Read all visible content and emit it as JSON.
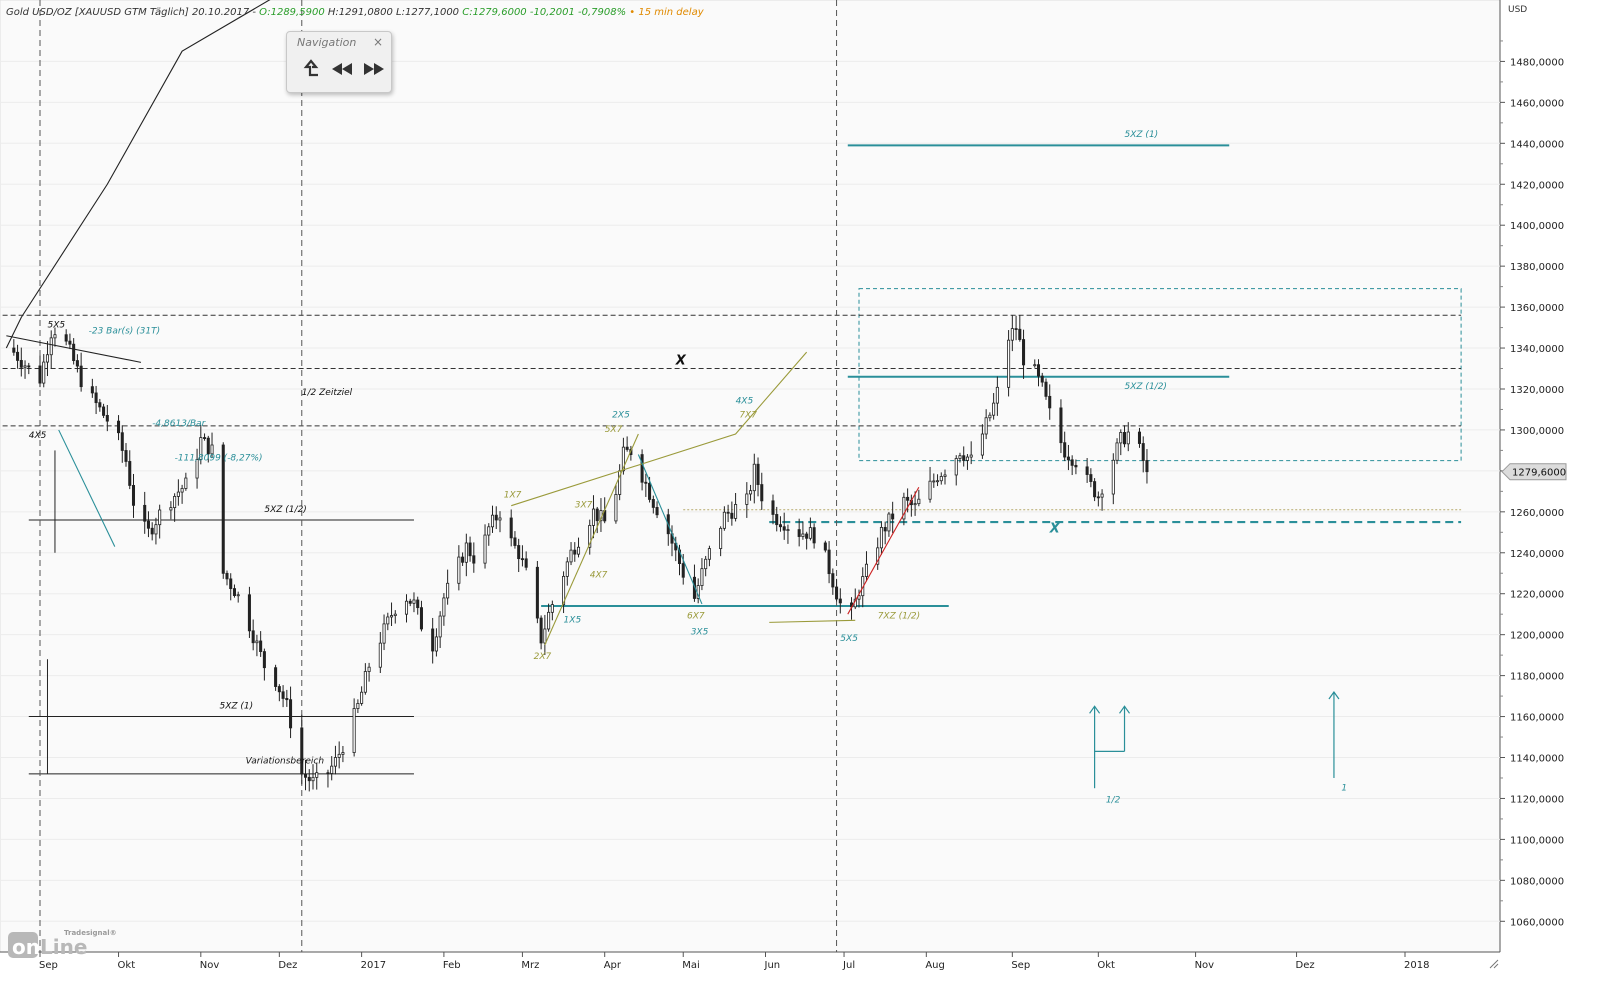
{
  "header": {
    "symbol": "Gold USD/OZ [XAUUSD GTM Täglich] 20.10.2017 -",
    "open": "O:1289,5900",
    "hl": "H:1291,0800 L:1277,1000",
    "close": "C:1279,6000 -10,2001 -0,7908%",
    "delay": "• 15 min delay"
  },
  "navigation": {
    "title": "Navigation",
    "close_glyph": "×",
    "buttons": [
      "go-to-last",
      "scroll-back",
      "scroll-forward"
    ]
  },
  "logo": {
    "brand": "Tradesignal®",
    "word": "onLine"
  },
  "colors": {
    "teal": "#2a8f99",
    "olive": "#9a9a3a",
    "black": "#222222",
    "red": "#cc2222",
    "price_tag": "#dcdcdc"
  },
  "chart_data": {
    "type": "candlestick",
    "currency_label": "USD",
    "ylim": [
      1045,
      1510
    ],
    "y_ticks": [
      1060,
      1080,
      1100,
      1120,
      1140,
      1160,
      1180,
      1200,
      1220,
      1240,
      1260,
      1280,
      1300,
      1320,
      1340,
      1360,
      1380,
      1400,
      1420,
      1440,
      1460,
      1480
    ],
    "y_tick_labels": [
      "1060,0000",
      "1080,0000",
      "1100,0000",
      "1120,0000",
      "1140,0000",
      "1160,0000",
      "1180,0000",
      "1200,0000",
      "1220,0000",
      "1240,0000",
      "1260,0000",
      "1280,0000",
      "1300,0000",
      "1320,0000",
      "1340,0000",
      "1360,0000",
      "1380,0000",
      "1400,0000",
      "1420,0000",
      "1440,0000",
      "1460,0000",
      "1480,0000"
    ],
    "last_price_label": "1279,6000",
    "last_price": 1279.6,
    "x_months": [
      "Sep",
      "Okt",
      "Nov",
      "Dez",
      "2017",
      "Feb",
      "Mrz",
      "Apr",
      "Mai",
      "Jun",
      "Jul",
      "Aug",
      "Sep",
      "Okt",
      "Nov",
      "Dez",
      "2018"
    ],
    "x_month_index": [
      0,
      21,
      43,
      64,
      86,
      108,
      129,
      151,
      172,
      194,
      215,
      237,
      260,
      283,
      309,
      336,
      365
    ],
    "x_range": [
      -10,
      380
    ],
    "price_path": [
      [
        -8,
        1340
      ],
      [
        -3,
        1330
      ],
      [
        0,
        1325
      ],
      [
        3,
        1348
      ],
      [
        5,
        1350
      ],
      [
        8,
        1338
      ],
      [
        12,
        1320
      ],
      [
        16,
        1310
      ],
      [
        20,
        1300
      ],
      [
        23,
        1285
      ],
      [
        26,
        1255
      ],
      [
        29,
        1250
      ],
      [
        33,
        1262
      ],
      [
        37,
        1270
      ],
      [
        40,
        1275
      ],
      [
        43,
        1295
      ],
      [
        46,
        1290
      ],
      [
        47,
        1265
      ],
      [
        49,
        1230
      ],
      [
        52,
        1222
      ],
      [
        54,
        1215
      ],
      [
        57,
        1200
      ],
      [
        60,
        1185
      ],
      [
        63,
        1178
      ],
      [
        66,
        1165
      ],
      [
        68,
        1150
      ],
      [
        70,
        1132
      ],
      [
        73,
        1128
      ],
      [
        76,
        1130
      ],
      [
        79,
        1138
      ],
      [
        82,
        1150
      ],
      [
        85,
        1165
      ],
      [
        88,
        1185
      ],
      [
        91,
        1198
      ],
      [
        94,
        1210
      ],
      [
        97,
        1220
      ],
      [
        100,
        1215
      ],
      [
        102,
        1205
      ],
      [
        105,
        1195
      ],
      [
        108,
        1218
      ],
      [
        111,
        1230
      ],
      [
        114,
        1243
      ],
      [
        117,
        1235
      ],
      [
        120,
        1252
      ],
      [
        123,
        1260
      ],
      [
        125,
        1248
      ],
      [
        128,
        1240
      ],
      [
        130,
        1230
      ],
      [
        132,
        1212
      ],
      [
        134,
        1198
      ],
      [
        136,
        1210
      ],
      [
        139,
        1225
      ],
      [
        142,
        1240
      ],
      [
        145,
        1250
      ],
      [
        148,
        1260
      ],
      [
        151,
        1255
      ],
      [
        154,
        1270
      ],
      [
        156,
        1288
      ],
      [
        158,
        1290
      ],
      [
        161,
        1278
      ],
      [
        164,
        1265
      ],
      [
        167,
        1255
      ],
      [
        169,
        1245
      ],
      [
        172,
        1230
      ],
      [
        175,
        1218
      ],
      [
        177,
        1230
      ],
      [
        180,
        1245
      ],
      [
        183,
        1258
      ],
      [
        186,
        1262
      ],
      [
        189,
        1265
      ],
      [
        191,
        1280
      ],
      [
        194,
        1262
      ],
      [
        196,
        1258
      ],
      [
        199,
        1255
      ],
      [
        202,
        1250
      ],
      [
        205,
        1250
      ],
      [
        208,
        1248
      ],
      [
        211,
        1232
      ],
      [
        214,
        1215
      ],
      [
        217,
        1210
      ],
      [
        219,
        1222
      ],
      [
        222,
        1235
      ],
      [
        225,
        1250
      ],
      [
        228,
        1258
      ],
      [
        231,
        1265
      ],
      [
        234,
        1262
      ],
      [
        237,
        1270
      ],
      [
        240,
        1278
      ],
      [
        243,
        1282
      ],
      [
        246,
        1290
      ],
      [
        249,
        1285
      ],
      [
        252,
        1298
      ],
      [
        255,
        1312
      ],
      [
        257,
        1325
      ],
      [
        259,
        1345
      ],
      [
        261,
        1350
      ],
      [
        263,
        1335
      ],
      [
        266,
        1328
      ],
      [
        268,
        1320
      ],
      [
        271,
        1302
      ],
      [
        274,
        1290
      ],
      [
        277,
        1285
      ],
      [
        280,
        1275
      ],
      [
        283,
        1268
      ],
      [
        286,
        1282
      ],
      [
        289,
        1295
      ],
      [
        292,
        1300
      ],
      [
        295,
        1285
      ],
      [
        296,
        1279.6
      ]
    ],
    "horizontal_lines": [
      {
        "value": 1356,
        "style": "black-dashed",
        "x0": -10,
        "x1": 380
      },
      {
        "value": 1330,
        "style": "black-dashed",
        "x0": -10,
        "x1": 380
      },
      {
        "value": 1302,
        "style": "black-dashed",
        "x0": -10,
        "x1": 380
      },
      {
        "value": 1256,
        "style": "black-solid",
        "x0": -3,
        "x1": 100
      },
      {
        "value": 1160,
        "style": "black-solid",
        "x0": -3,
        "x1": 100
      },
      {
        "value": 1132,
        "style": "black-solid",
        "x0": -3,
        "x1": 100
      },
      {
        "value": 1439,
        "style": "teal-solid",
        "x0": 216,
        "x1": 318
      },
      {
        "value": 1326,
        "style": "teal-solid",
        "x0": 216,
        "x1": 318
      },
      {
        "value": 1214,
        "style": "teal-solid",
        "x0": 134,
        "x1": 243
      },
      {
        "value": 1255,
        "style": "teal-dashed-thick",
        "x0": 195,
        "x1": 380
      },
      {
        "value": 1261,
        "style": "olive-dotted",
        "x0": 172,
        "x1": 380
      }
    ],
    "dashed_box": {
      "x0": 219,
      "x1": 380,
      "y0": 1285,
      "y1": 1369
    },
    "vertical_dashed": [
      0,
      70,
      213
    ],
    "trend_lines": [
      {
        "style": "black",
        "points": [
          [
            -9,
            1340
          ],
          [
            -5,
            1355
          ],
          [
            18,
            1420
          ],
          [
            38,
            1485
          ],
          [
            80,
            1530
          ]
        ]
      },
      {
        "style": "black",
        "points": [
          [
            -9,
            1346
          ],
          [
            27,
            1333
          ]
        ]
      },
      {
        "style": "olive",
        "points": [
          [
            126,
            1263
          ],
          [
            186,
            1298
          ],
          [
            205,
            1338
          ]
        ]
      },
      {
        "style": "olive",
        "points": [
          [
            135,
            1195
          ],
          [
            160,
            1298
          ]
        ]
      },
      {
        "style": "olive",
        "points": [
          [
            195,
            1206
          ],
          [
            218,
            1207
          ]
        ]
      },
      {
        "style": "red",
        "points": [
          [
            216,
            1210
          ],
          [
            235,
            1272
          ]
        ]
      },
      {
        "style": "teal",
        "points": [
          [
            5,
            1300
          ],
          [
            20,
            1243
          ]
        ]
      },
      {
        "style": "teal",
        "points": [
          [
            160,
            1288
          ],
          [
            177,
            1215
          ]
        ]
      }
    ],
    "labels": [
      {
        "text": "5X5",
        "x": 2,
        "y": 1350,
        "color": "black"
      },
      {
        "text": "-23 Bar(s) (31T)",
        "x": 13,
        "y": 1347,
        "color": "teal"
      },
      {
        "text": "4X5",
        "x": -3,
        "y": 1296,
        "color": "black"
      },
      {
        "text": "-4,8613/Bar",
        "x": 30,
        "y": 1302,
        "color": "teal"
      },
      {
        "text": "-111,8099 (-8,27%)",
        "x": 36,
        "y": 1285,
        "color": "teal"
      },
      {
        "text": "1/2 Zeitziel",
        "x": 70,
        "y": 1317,
        "color": "black"
      },
      {
        "text": "5XZ (1/2)",
        "x": 60,
        "y": 1260,
        "color": "black"
      },
      {
        "text": "5XZ (1)",
        "x": 48,
        "y": 1164,
        "color": "black"
      },
      {
        "text": "Variationsbereich",
        "x": 55,
        "y": 1137,
        "color": "black"
      },
      {
        "text": "X",
        "x": 170,
        "y": 1332,
        "color": "black",
        "bold": true
      },
      {
        "text": "1X7",
        "x": 124,
        "y": 1267,
        "color": "olive"
      },
      {
        "text": "3X7",
        "x": 143,
        "y": 1262,
        "color": "olive"
      },
      {
        "text": "2X5",
        "x": 153,
        "y": 1306,
        "color": "teal"
      },
      {
        "text": "5X7",
        "x": 151,
        "y": 1299,
        "color": "olive"
      },
      {
        "text": "4X7",
        "x": 147,
        "y": 1228,
        "color": "olive"
      },
      {
        "text": "1X5",
        "x": 140,
        "y": 1206,
        "color": "teal"
      },
      {
        "text": "2X7",
        "x": 132,
        "y": 1188,
        "color": "olive"
      },
      {
        "text": "6X7",
        "x": 173,
        "y": 1208,
        "color": "olive"
      },
      {
        "text": "3X5",
        "x": 174,
        "y": 1200,
        "color": "teal"
      },
      {
        "text": "4X5",
        "x": 186,
        "y": 1313,
        "color": "teal"
      },
      {
        "text": "7X7",
        "x": 187,
        "y": 1306,
        "color": "olive"
      },
      {
        "text": "5X5",
        "x": 214,
        "y": 1197,
        "color": "teal"
      },
      {
        "text": "7XZ (1/2)",
        "x": 224,
        "y": 1208,
        "color": "olive"
      },
      {
        "text": "5XZ (1)",
        "x": 290,
        "y": 1443,
        "color": "teal"
      },
      {
        "text": "5XZ (1/2)",
        "x": 290,
        "y": 1320,
        "color": "teal"
      },
      {
        "text": "X",
        "x": 270,
        "y": 1250,
        "color": "teal",
        "bold": true
      },
      {
        "text": "1/2",
        "x": 285,
        "y": 1118,
        "color": "teal"
      },
      {
        "text": "1",
        "x": 348,
        "y": 1124,
        "color": "teal"
      }
    ],
    "arrows": [
      {
        "x": 282,
        "y0": 1125,
        "y1": 1165
      },
      {
        "x": 290,
        "y0": 1143,
        "y1": 1165
      },
      {
        "x": 346,
        "y0": 1130,
        "y1": 1172
      }
    ]
  }
}
